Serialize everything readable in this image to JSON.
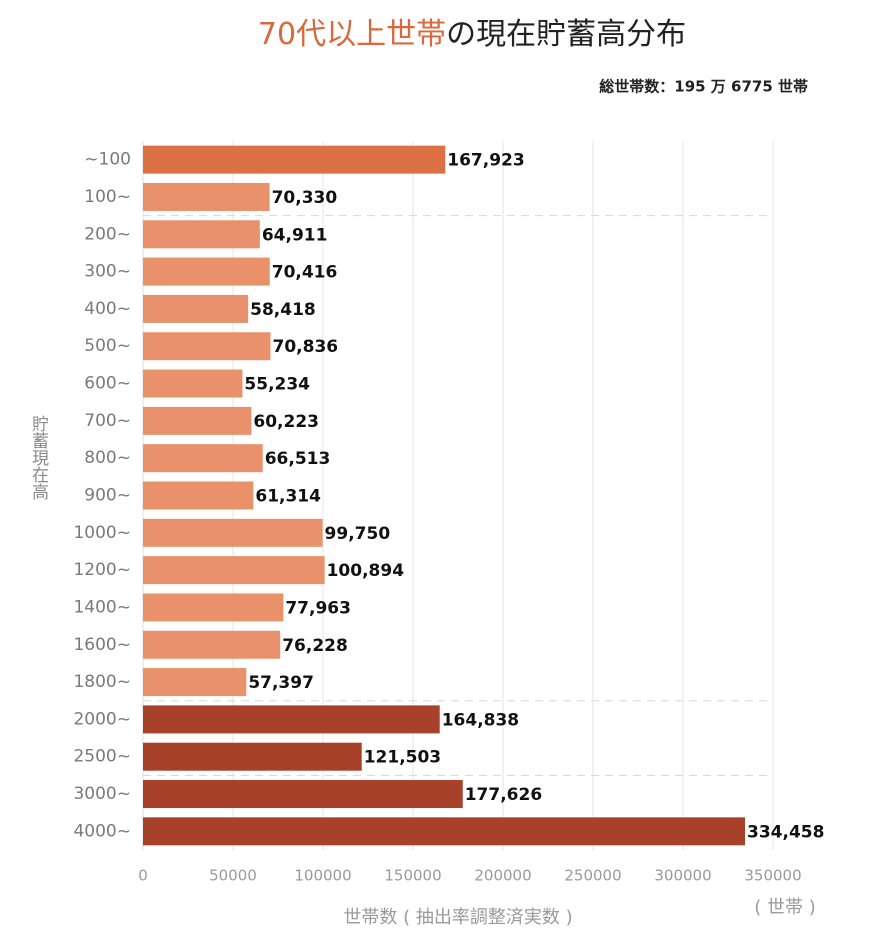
{
  "chart_data": {
    "type": "bar",
    "orientation": "horizontal",
    "title_highlight": "70代以上世帯",
    "title_rest": "の現在貯蓄高分布",
    "title_highlight_color": "#d9693d",
    "subtitle": "総世帯数：195 万 6775 世帯",
    "y_axis_label": "貯蓄現在高",
    "x_axis_label": "世帯数 ( 抽出率調整済実数 )",
    "x_unit_label": "( 世帯 )",
    "categories": [
      "~100",
      "100~",
      "200~",
      "300~",
      "400~",
      "500~",
      "600~",
      "700~",
      "800~",
      "900~",
      "1000~",
      "1200~",
      "1400~",
      "1600~",
      "1800~",
      "2000~",
      "2500~",
      "3000~",
      "4000~"
    ],
    "values": [
      167923,
      70330,
      64911,
      70416,
      58418,
      70836,
      55234,
      60223,
      66513,
      61314,
      99750,
      100894,
      77963,
      76228,
      57397,
      164838,
      121503,
      177626,
      334458
    ],
    "value_labels": [
      "167,923",
      "70,330",
      "64,911",
      "70,416",
      "58,418",
      "70,836",
      "55,234",
      "60,223",
      "66,513",
      "61,314",
      "99,750",
      "100,894",
      "77,963",
      "76,228",
      "57,397",
      "164,838",
      "121,503",
      "177,626",
      "334,458"
    ],
    "colors": [
      "#dc7244",
      "#e8916a",
      "#e8916a",
      "#e8916a",
      "#e8916a",
      "#e8916a",
      "#e8916a",
      "#e8916a",
      "#e8916a",
      "#e8916a",
      "#e8916a",
      "#e8916a",
      "#e8916a",
      "#e8916a",
      "#e8916a",
      "#a8412a",
      "#a8412a",
      "#a8412a",
      "#a8412a"
    ],
    "xlim": [
      0,
      350000
    ],
    "xticks": [
      0,
      50000,
      100000,
      150000,
      200000,
      250000,
      300000,
      350000
    ],
    "grid": true
  }
}
